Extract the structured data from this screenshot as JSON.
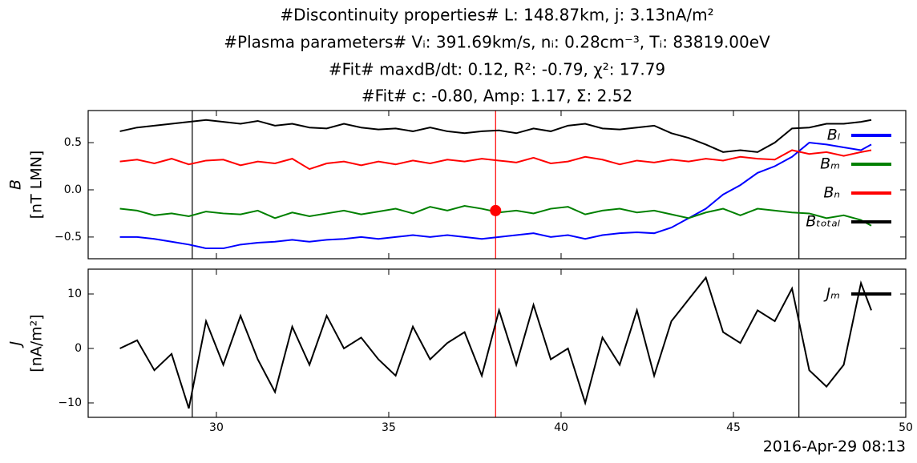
{
  "chart_data": [
    {
      "type": "line",
      "title": [
        "#Discontinuity properties# L: 148.87km, j: 3.13nA/m²",
        "#Plasma parameters# Vᵢ: 391.69km/s, nᵢ: 0.28cm⁻³, Tᵢ: 83819.00eV",
        "#Fit# maxdB/dt: 0.12, R²: -0.79, χ²: 17.79",
        "#Fit# c: -0.80, Amp: 1.17, Σ: 2.52"
      ],
      "ylabel": [
        "B",
        "[nT LMN]"
      ],
      "x": [
        27.2,
        27.7,
        28.2,
        28.7,
        29.2,
        29.7,
        30.2,
        30.7,
        31.2,
        31.7,
        32.2,
        32.7,
        33.2,
        33.7,
        34.2,
        34.7,
        35.2,
        35.7,
        36.2,
        36.7,
        37.2,
        37.7,
        38.2,
        38.7,
        39.2,
        39.7,
        40.2,
        40.7,
        41.2,
        41.7,
        42.2,
        42.7,
        43.2,
        43.7,
        44.2,
        44.7,
        45.2,
        45.7,
        46.2,
        46.7,
        47.2,
        47.7,
        48.2,
        48.7,
        49.0
      ],
      "series": [
        {
          "name": "Bₗ",
          "color": "#0000ff",
          "values": [
            -0.5,
            -0.5,
            -0.52,
            -0.55,
            -0.58,
            -0.62,
            -0.62,
            -0.58,
            -0.56,
            -0.55,
            -0.53,
            -0.55,
            -0.53,
            -0.52,
            -0.5,
            -0.52,
            -0.5,
            -0.48,
            -0.5,
            -0.48,
            -0.5,
            -0.52,
            -0.5,
            -0.48,
            -0.46,
            -0.5,
            -0.48,
            -0.52,
            -0.48,
            -0.46,
            -0.45,
            -0.46,
            -0.4,
            -0.3,
            -0.2,
            -0.05,
            0.05,
            0.18,
            0.25,
            0.35,
            0.5,
            0.48,
            0.45,
            0.42,
            0.48
          ]
        },
        {
          "name": "Bₘ",
          "color": "#008000",
          "values": [
            -0.2,
            -0.22,
            -0.27,
            -0.25,
            -0.28,
            -0.23,
            -0.25,
            -0.26,
            -0.22,
            -0.3,
            -0.24,
            -0.28,
            -0.25,
            -0.22,
            -0.26,
            -0.23,
            -0.2,
            -0.25,
            -0.18,
            -0.22,
            -0.17,
            -0.2,
            -0.24,
            -0.22,
            -0.25,
            -0.2,
            -0.18,
            -0.26,
            -0.22,
            -0.2,
            -0.24,
            -0.22,
            -0.26,
            -0.3,
            -0.24,
            -0.2,
            -0.27,
            -0.2,
            -0.22,
            -0.24,
            -0.25,
            -0.3,
            -0.27,
            -0.32,
            -0.38
          ]
        },
        {
          "name": "Bₙ",
          "color": "#ff0000",
          "values": [
            0.3,
            0.32,
            0.28,
            0.33,
            0.27,
            0.31,
            0.32,
            0.26,
            0.3,
            0.28,
            0.33,
            0.22,
            0.28,
            0.3,
            0.26,
            0.3,
            0.27,
            0.31,
            0.28,
            0.32,
            0.3,
            0.33,
            0.31,
            0.29,
            0.34,
            0.28,
            0.3,
            0.35,
            0.32,
            0.27,
            0.31,
            0.29,
            0.32,
            0.3,
            0.33,
            0.31,
            0.35,
            0.33,
            0.32,
            0.42,
            0.38,
            0.4,
            0.36,
            0.4,
            0.42
          ]
        },
        {
          "name": "Bₜₒₜₐₗ",
          "color": "#000000",
          "values": [
            0.62,
            0.66,
            0.68,
            0.7,
            0.72,
            0.74,
            0.72,
            0.7,
            0.73,
            0.68,
            0.7,
            0.66,
            0.65,
            0.7,
            0.66,
            0.64,
            0.65,
            0.62,
            0.66,
            0.62,
            0.6,
            0.62,
            0.63,
            0.6,
            0.65,
            0.62,
            0.68,
            0.7,
            0.65,
            0.64,
            0.66,
            0.68,
            0.6,
            0.55,
            0.48,
            0.4,
            0.42,
            0.4,
            0.5,
            0.65,
            0.66,
            0.7,
            0.7,
            0.72,
            0.74
          ]
        }
      ],
      "xlim": [
        26.28,
        50
      ],
      "xticks": [
        30,
        35,
        40,
        45,
        50
      ],
      "show_xtick_labels": false,
      "ylim": [
        -0.73,
        0.84
      ],
      "yticks": [
        {
          "value": 0.5,
          "label": "0.5"
        },
        {
          "value": 0,
          "label": "0.0"
        },
        {
          "value": -0.5,
          "label": "−0.5"
        }
      ],
      "vlines": [
        {
          "x": 29.3,
          "color": "#000000"
        },
        {
          "x": 38.1,
          "color": "#ff0000"
        },
        {
          "x": 46.9,
          "color": "#000000"
        }
      ],
      "marker": {
        "x": 38.1,
        "y": -0.22,
        "color": "#ff0000"
      }
    },
    {
      "type": "line",
      "ylabel": [
        "J",
        "[nA/m²]"
      ],
      "xlabel": "2016-Apr-29 08:13",
      "x": [
        27.2,
        27.7,
        28.2,
        28.7,
        29.2,
        29.7,
        30.2,
        30.7,
        31.2,
        31.7,
        32.2,
        32.7,
        33.2,
        33.7,
        34.2,
        34.7,
        35.2,
        35.7,
        36.2,
        36.7,
        37.2,
        37.7,
        38.2,
        38.7,
        39.2,
        39.7,
        40.2,
        40.7,
        41.2,
        41.7,
        42.2,
        42.7,
        43.2,
        43.7,
        44.2,
        44.7,
        45.2,
        45.7,
        46.2,
        46.7,
        47.2,
        47.7,
        48.2,
        48.7,
        49.0
      ],
      "series": [
        {
          "name": "Jₘ",
          "color": "#000000",
          "values": [
            0,
            1.5,
            -4,
            -1,
            -11,
            5,
            -3,
            6,
            -2,
            -8,
            4,
            -3,
            6,
            0,
            2,
            -2,
            -5,
            4,
            -2,
            1,
            3,
            -5,
            7,
            -3,
            8,
            -2,
            0,
            -10,
            2,
            -3,
            7,
            -5,
            5,
            9,
            13,
            3,
            1,
            7,
            5,
            11,
            -4,
            -7,
            -3,
            12,
            7
          ]
        }
      ],
      "xlim": [
        26.28,
        50
      ],
      "xticks": [
        30,
        35,
        40,
        45,
        50
      ],
      "show_xtick_labels": true,
      "ylim": [
        -12.65,
        14.56
      ],
      "yticks": [
        {
          "value": 10,
          "label": "10"
        },
        {
          "value": 0,
          "label": "0"
        },
        {
          "value": -10,
          "label": "−10"
        }
      ],
      "vlines": [
        {
          "x": 29.3,
          "color": "#000000"
        },
        {
          "x": 38.1,
          "color": "#ff0000"
        },
        {
          "x": 46.9,
          "color": "#000000"
        }
      ]
    }
  ]
}
